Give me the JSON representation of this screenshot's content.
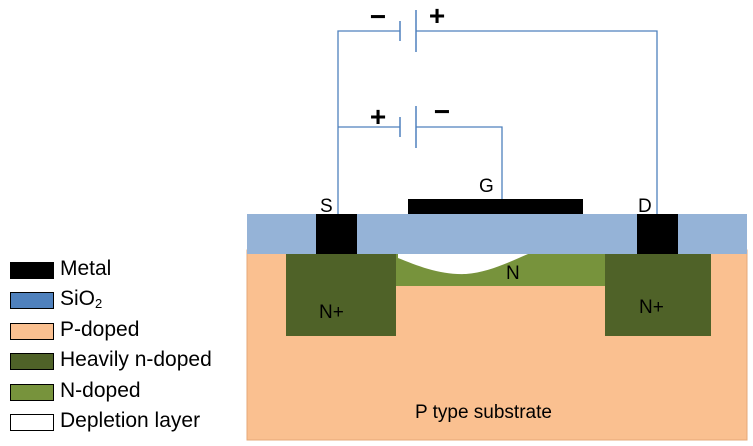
{
  "diagram": {
    "labels": {
      "source": "S",
      "gate": "G",
      "drain": "D",
      "n_channel": "N",
      "n_plus_left": "N+",
      "n_plus_right": "N+",
      "substrate": "P type substrate"
    },
    "battery_top": {
      "minus": "−",
      "plus": "+"
    },
    "battery_bottom": {
      "plus": "+",
      "minus": "−"
    }
  },
  "legend": {
    "items": [
      {
        "key": "metal",
        "label": "Metal",
        "color": "#000000"
      },
      {
        "key": "sio2",
        "label_main": "SiO",
        "label_sub": "2",
        "color": "#4f81bd"
      },
      {
        "key": "p_doped",
        "label": "P-doped",
        "color": "#fac090"
      },
      {
        "key": "heavily_n_doped",
        "label": "Heavily n-doped",
        "color": "#4f6228"
      },
      {
        "key": "n_doped",
        "label": "N-doped",
        "color": "#77933c"
      },
      {
        "key": "depletion",
        "label": "Depletion layer",
        "color": "#ffffff"
      }
    ]
  },
  "colors": {
    "substrate": "#fac090",
    "substrate_border": "#e5a978",
    "oxide": "#95b3d7",
    "metal": "#000000",
    "n_plus": "#4f6228",
    "n_channel": "#77933c",
    "depletion": "#ffffff",
    "wire": "#4f81bd"
  }
}
